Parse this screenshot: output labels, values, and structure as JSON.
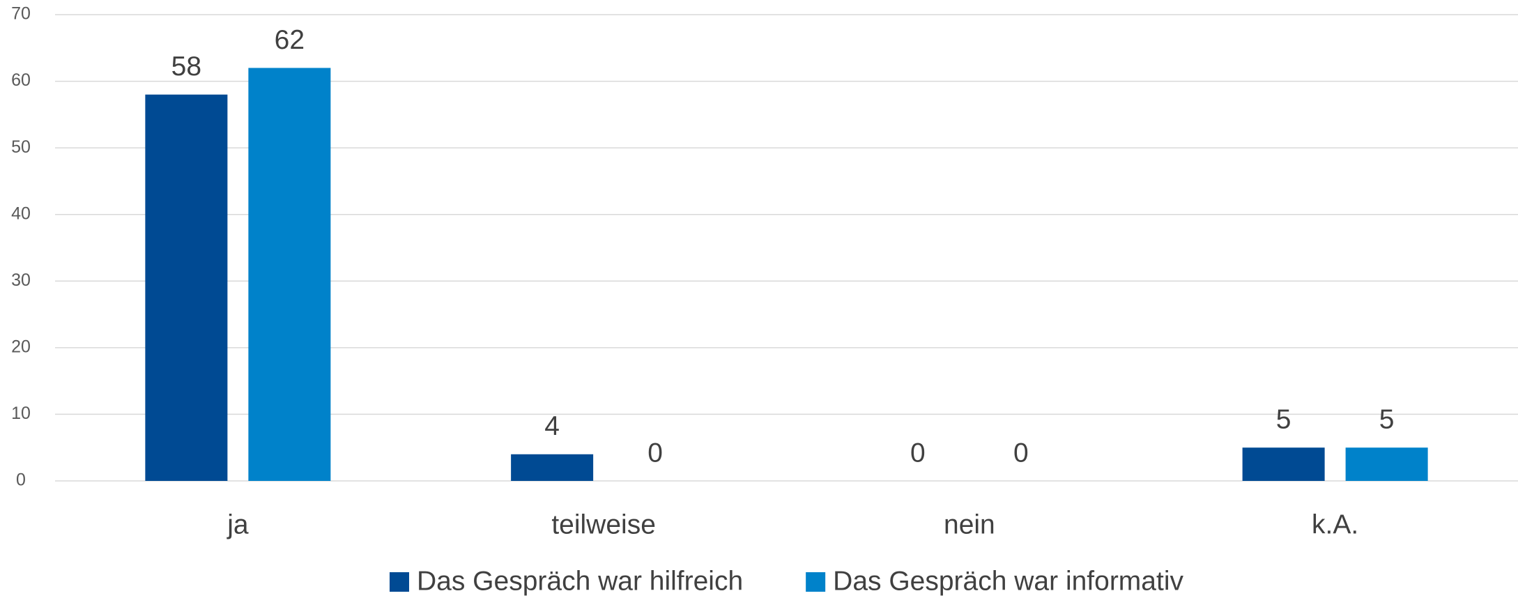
{
  "chart_data": {
    "type": "bar",
    "categories": [
      "ja",
      "teilweise",
      "nein",
      "k.A."
    ],
    "series": [
      {
        "name": "Das Gespräch war hilfreich",
        "color": "#004a93",
        "values": [
          58,
          4,
          0,
          5
        ]
      },
      {
        "name": "Das Gespräch war informativ",
        "color": "#0082ca",
        "values": [
          62,
          0,
          0,
          5
        ]
      }
    ],
    "ylim": [
      0,
      70
    ],
    "yticks": [
      0,
      10,
      20,
      30,
      40,
      50,
      60,
      70
    ],
    "grid": true,
    "legend": "bottom"
  }
}
